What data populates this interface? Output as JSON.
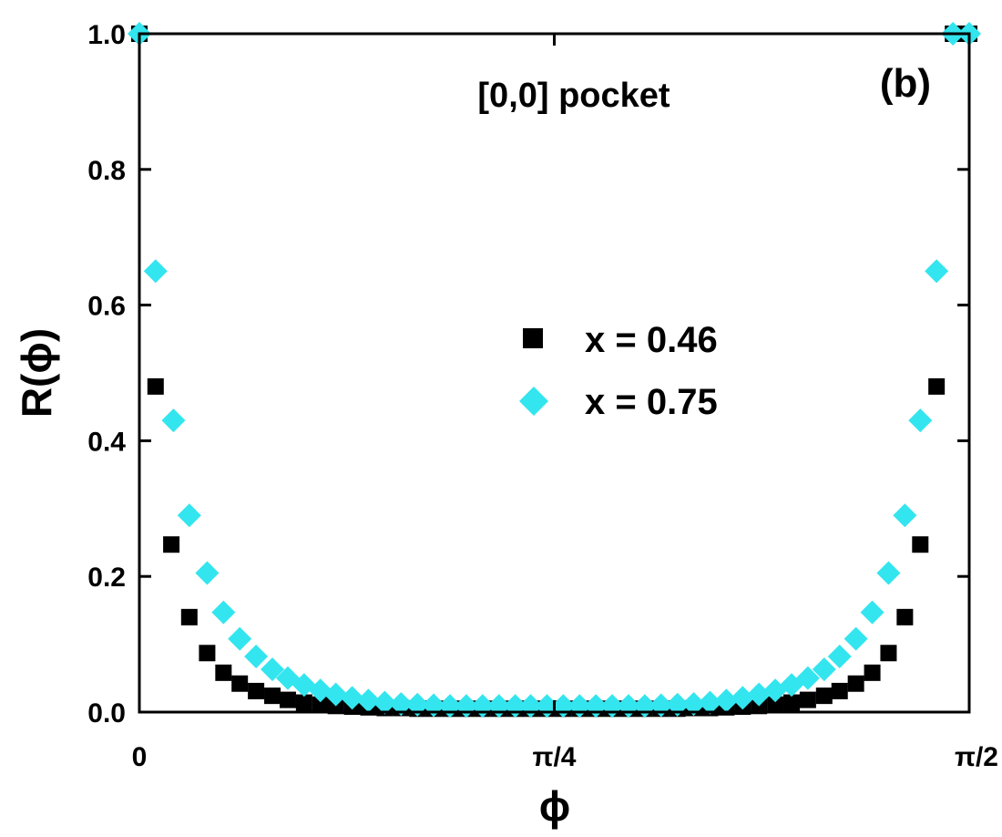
{
  "chart_data": {
    "type": "scatter",
    "title": "",
    "xlabel": "ϕ",
    "ylabel": "R(ϕ)",
    "xlim": [
      0,
      1.5708
    ],
    "ylim": [
      0,
      1.0
    ],
    "grid": false,
    "legend_position": "center-right",
    "annotations": {
      "pocket": "[0,0] pocket",
      "panel": "(b)"
    },
    "x_ticks": [
      {
        "value": 0,
        "label": "0"
      },
      {
        "value": 0.7854,
        "label": "π/4"
      },
      {
        "value": 1.5708,
        "label": "π/2"
      }
    ],
    "y_ticks": [
      {
        "value": 0.0,
        "label": "0.0"
      },
      {
        "value": 0.2,
        "label": "0.2"
      },
      {
        "value": 0.4,
        "label": "0.4"
      },
      {
        "value": 0.6,
        "label": "0.6"
      },
      {
        "value": 0.8,
        "label": "0.8"
      },
      {
        "value": 1.0,
        "label": "1.0"
      }
    ],
    "series": [
      {
        "name": "x = 0.46",
        "marker": "square",
        "color": "#000000",
        "x": [
          0.0,
          0.0307,
          0.0605,
          0.0945,
          0.1283,
          0.1592,
          0.19,
          0.2209,
          0.2518,
          0.281,
          0.3118,
          0.3427,
          0.3719,
          0.4028,
          0.4336,
          0.4645,
          0.4954,
          0.5263,
          0.5571,
          0.588,
          0.6189,
          0.6497,
          0.6806,
          0.7115,
          0.7407,
          0.7715,
          0.8024,
          0.8333,
          0.8641,
          0.895,
          0.9259,
          0.9567,
          0.9876,
          1.0185,
          1.0494,
          1.0802,
          1.1111,
          1.142,
          1.1728,
          1.2037,
          1.2346,
          1.2654,
          1.2963,
          1.3255,
          1.3564,
          1.3873,
          1.4181,
          1.449,
          1.4782,
          1.509,
          1.5401,
          1.5708
        ],
        "y": [
          1.0,
          0.48,
          0.247,
          0.14,
          0.087,
          0.058,
          0.042,
          0.031,
          0.024,
          0.018,
          0.014,
          0.011,
          0.009,
          0.008,
          0.007,
          0.006,
          0.006,
          0.005,
          0.005,
          0.005,
          0.005,
          0.005,
          0.005,
          0.005,
          0.005,
          0.005,
          0.005,
          0.005,
          0.005,
          0.005,
          0.005,
          0.005,
          0.005,
          0.005,
          0.006,
          0.006,
          0.007,
          0.008,
          0.009,
          0.011,
          0.014,
          0.018,
          0.024,
          0.031,
          0.042,
          0.058,
          0.087,
          0.14,
          0.247,
          0.48,
          1.0,
          1.0
        ]
      },
      {
        "name": "x = 0.75",
        "marker": "diamond",
        "color": "#33E5EE",
        "x": [
          0.0,
          0.0307,
          0.0646,
          0.0945,
          0.1283,
          0.1592,
          0.19,
          0.2209,
          0.2518,
          0.281,
          0.3118,
          0.3427,
          0.3719,
          0.4028,
          0.4336,
          0.4645,
          0.4954,
          0.5263,
          0.5571,
          0.588,
          0.6189,
          0.6497,
          0.6806,
          0.7115,
          0.7407,
          0.7715,
          0.8024,
          0.8333,
          0.8641,
          0.895,
          0.9259,
          0.9567,
          0.9876,
          1.0185,
          1.0494,
          1.0802,
          1.1111,
          1.142,
          1.1728,
          1.2037,
          1.2346,
          1.2654,
          1.2963,
          1.3255,
          1.3564,
          1.3873,
          1.4181,
          1.449,
          1.4782,
          1.509,
          1.5401,
          1.5708
        ],
        "y": [
          1.0,
          0.65,
          0.43,
          0.29,
          0.205,
          0.147,
          0.108,
          0.082,
          0.063,
          0.05,
          0.04,
          0.032,
          0.026,
          0.021,
          0.017,
          0.014,
          0.012,
          0.011,
          0.01,
          0.009,
          0.009,
          0.009,
          0.009,
          0.009,
          0.009,
          0.009,
          0.009,
          0.009,
          0.009,
          0.009,
          0.009,
          0.009,
          0.01,
          0.011,
          0.012,
          0.014,
          0.017,
          0.021,
          0.026,
          0.032,
          0.04,
          0.05,
          0.063,
          0.082,
          0.108,
          0.147,
          0.205,
          0.29,
          0.43,
          0.65,
          1.0,
          1.0
        ]
      }
    ]
  }
}
